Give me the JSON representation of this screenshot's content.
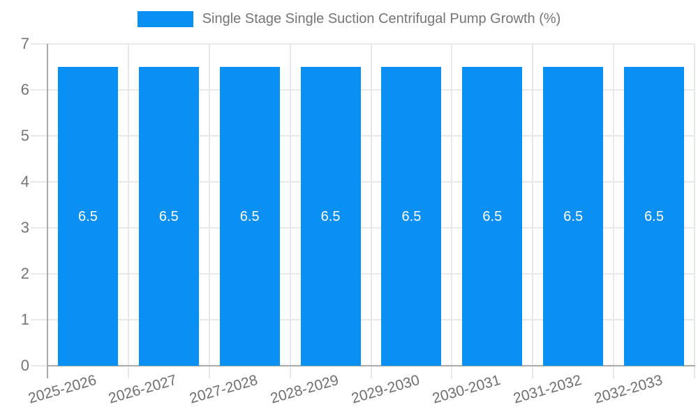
{
  "legend": {
    "swatch_color": "#0a8ff2"
  },
  "chart_data": {
    "type": "bar",
    "title": "Single Stage Single Suction Centrifugal Pump Growth (%)",
    "categories": [
      "2025-2026",
      "2026-2027",
      "2027-2028",
      "2028-2029",
      "2029-2030",
      "2030-2031",
      "2031-2032",
      "2032-2033"
    ],
    "values": [
      6.5,
      6.5,
      6.5,
      6.5,
      6.5,
      6.5,
      6.5,
      6.5
    ],
    "bar_labels": [
      "6.5",
      "6.5",
      "6.5",
      "6.5",
      "6.5",
      "6.5",
      "6.5",
      "6.5"
    ],
    "xlabel": "",
    "ylabel": "",
    "ylim": [
      0,
      7
    ],
    "yticks": [
      0,
      1,
      2,
      3,
      4,
      5,
      6,
      7
    ],
    "grid": true,
    "legend_position": "top",
    "colors": {
      "bar": "#0a8ff2",
      "grid": "#e8e8e8",
      "axis": "#a9a9a9",
      "tick_text": "#757575",
      "bar_label_text": "#ffffff"
    }
  }
}
